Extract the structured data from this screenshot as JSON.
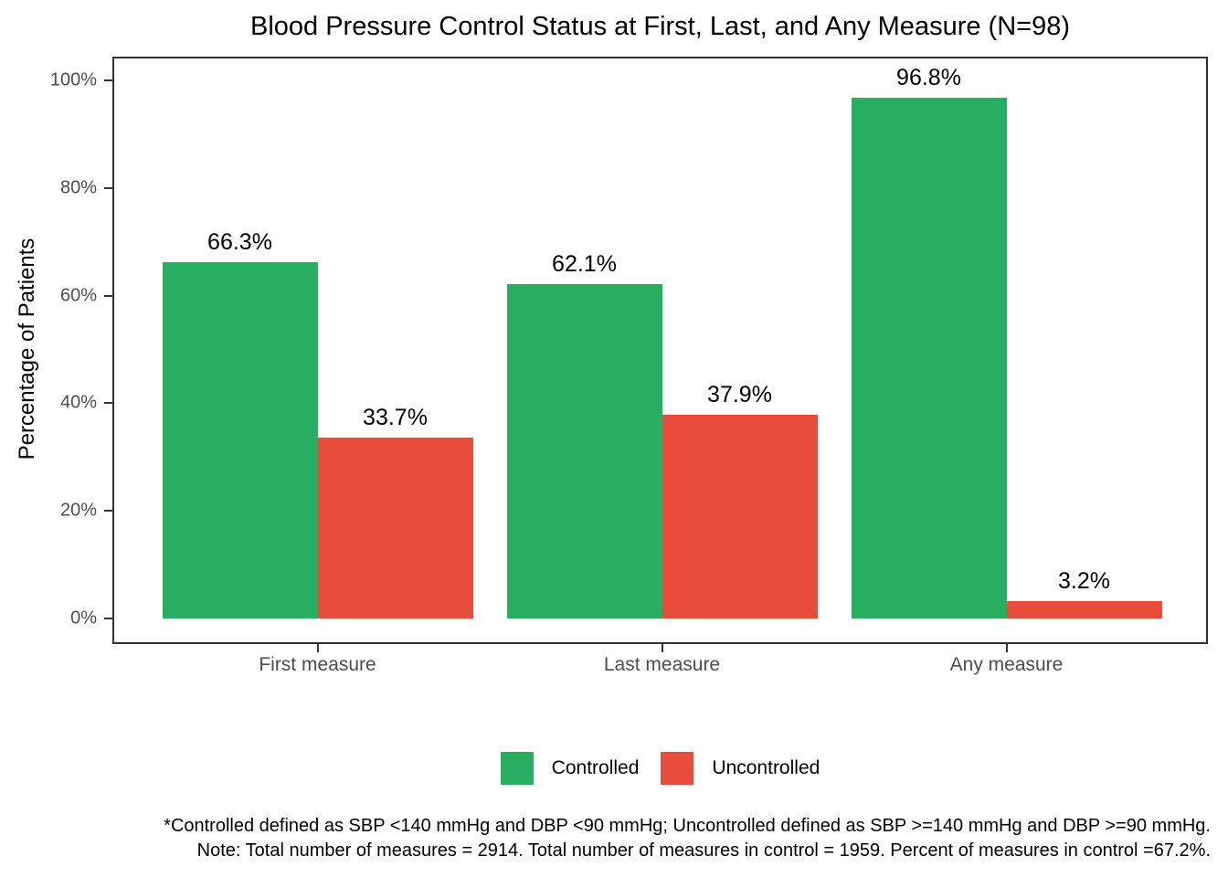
{
  "colors": {
    "controlled": "#27AE60",
    "uncontrolled": "#E74C3C",
    "axis_line": "#333333",
    "axis_text": "#4d4d4d",
    "label_text": "#000000"
  },
  "chart_data": {
    "type": "bar",
    "title": "Blood Pressure Control Status at First, Last, and Any Measure (N=98)",
    "ylabel": "Percentage of Patients",
    "xlabel": "",
    "categories": [
      "First measure",
      "Last measure",
      "Any measure"
    ],
    "series": [
      {
        "name": "Controlled",
        "color_key": "controlled",
        "values": [
          66.3,
          62.1,
          96.8
        ],
        "labels": [
          "66.3%",
          "62.1%",
          "96.8%"
        ]
      },
      {
        "name": "Uncontrolled",
        "color_key": "uncontrolled",
        "values": [
          33.7,
          37.9,
          3.2
        ],
        "labels": [
          "33.7%",
          "37.9%",
          "3.2%"
        ]
      }
    ],
    "ylim": [
      0,
      100
    ],
    "yticks": [
      {
        "value": 0,
        "label": "0%"
      },
      {
        "value": 20,
        "label": "20%"
      },
      {
        "value": 40,
        "label": "40%"
      },
      {
        "value": 60,
        "label": "60%"
      },
      {
        "value": 80,
        "label": "80%"
      },
      {
        "value": 100,
        "label": "100%"
      }
    ],
    "grid": false,
    "legend_position": "bottom"
  },
  "legend": {
    "items": [
      {
        "label": "Controlled",
        "color_key": "controlled"
      },
      {
        "label": "Uncontrolled",
        "color_key": "uncontrolled"
      }
    ]
  },
  "footnote": {
    "line1": "*Controlled defined as SBP <140 mmHg and DBP <90 mmHg; Uncontrolled defined as SBP >=140 mmHg and DBP >=90 mmHg.",
    "line2": "Note: Total number of measures = 2914. Total number of measures in control = 1959. Percent of measures in control =67.2%."
  }
}
